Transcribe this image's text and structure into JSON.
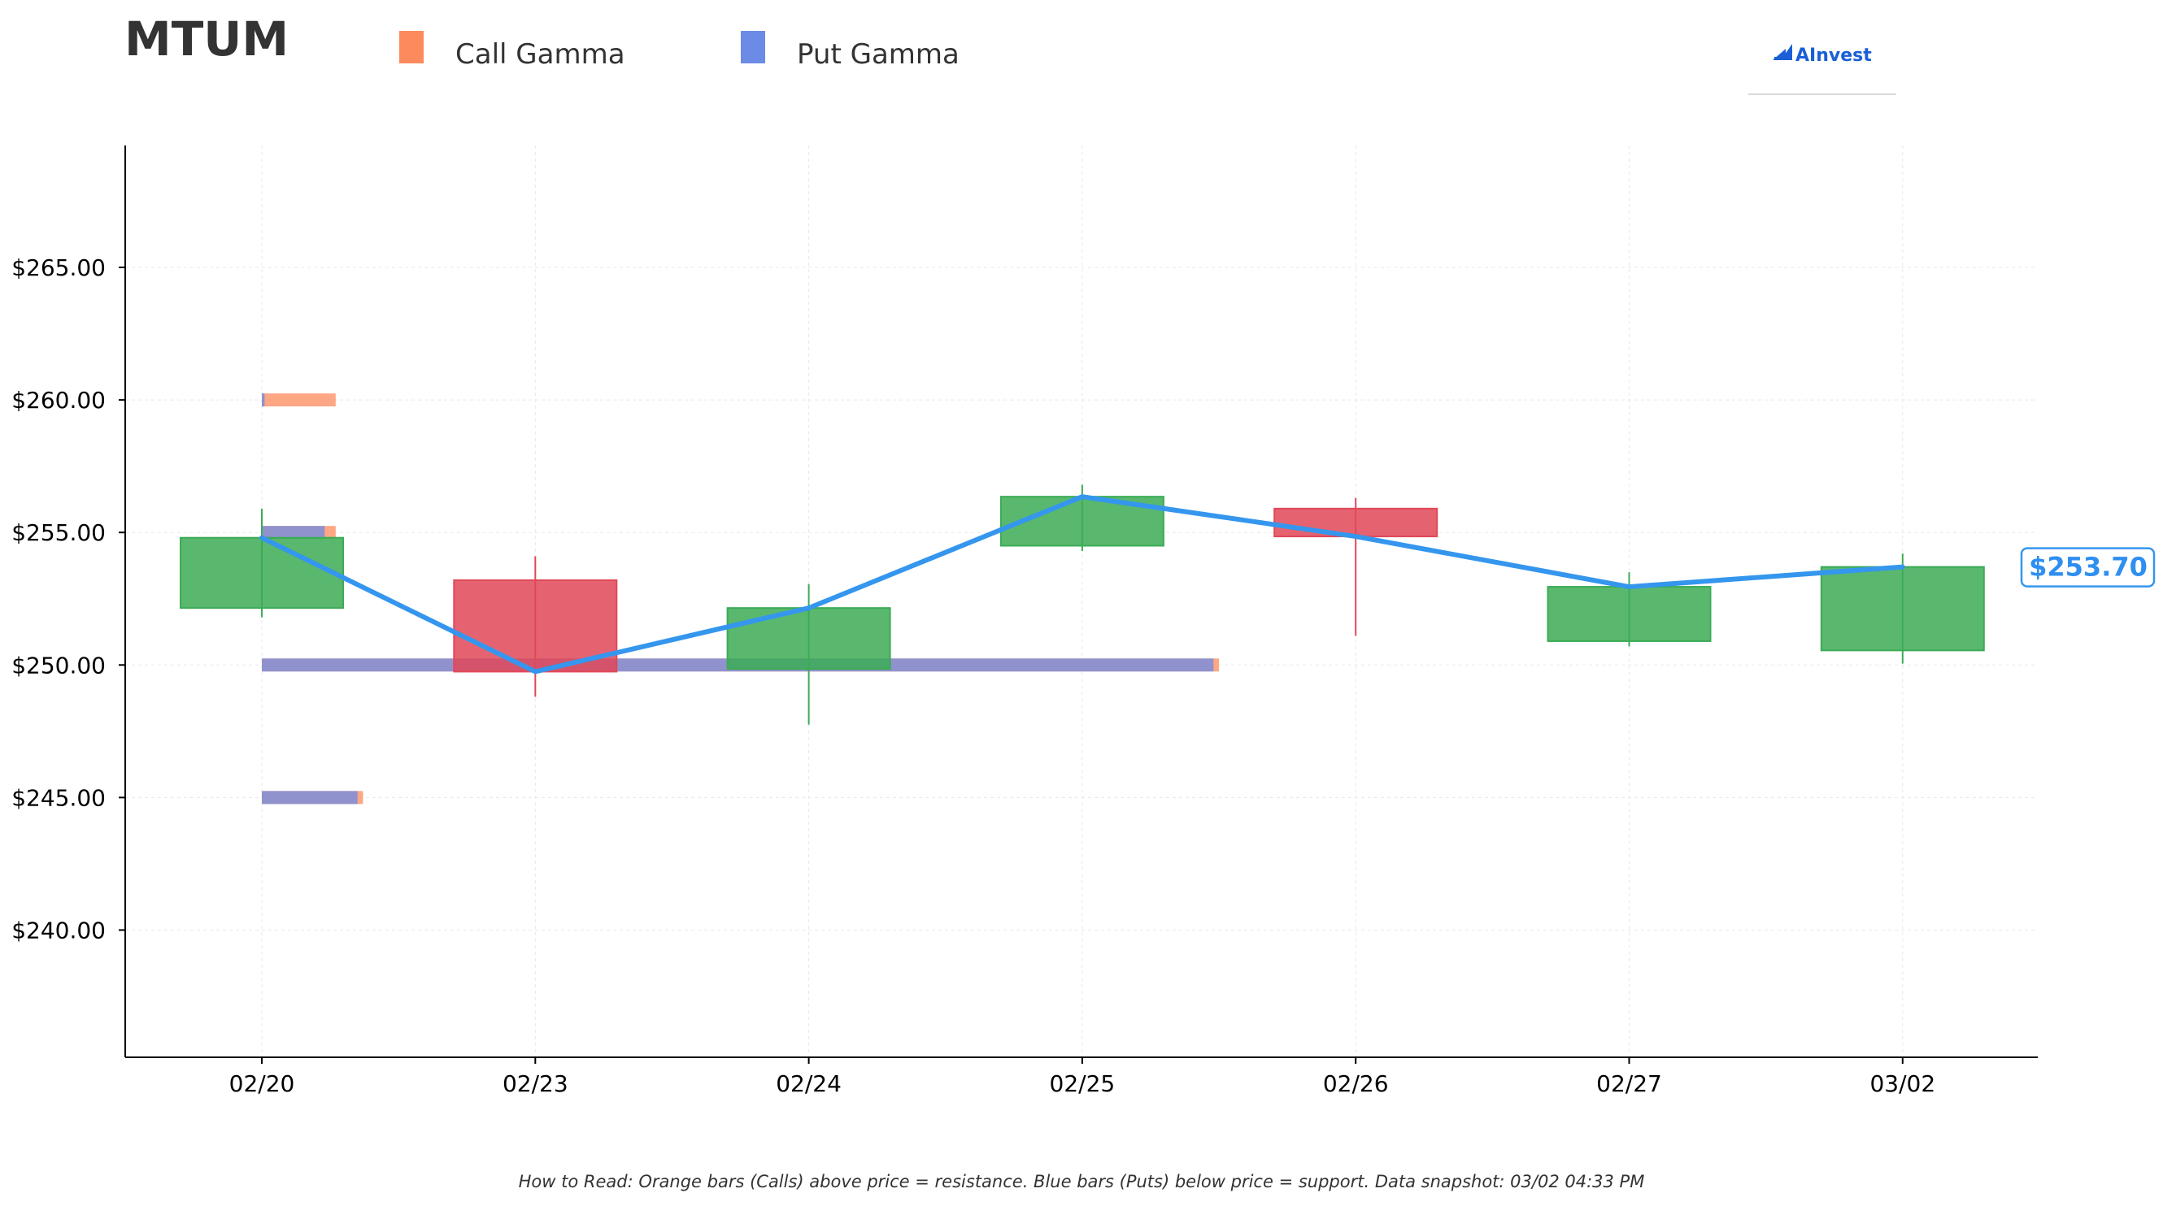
{
  "header": {
    "ticker": "MTUM",
    "legend": [
      {
        "label": "Call Gamma",
        "color": "#fd8a5c"
      },
      {
        "label": "Put Gamma",
        "color": "#6b8be6"
      }
    ],
    "logo_text": "AInvest",
    "logo_icon": "aivest-logo-icon"
  },
  "footnote": "How to Read: Orange bars (Calls) above price = resistance. Blue bars (Puts) below price = support. Data snapshot: 03/02 04:33 PM",
  "price_tag": "$253.70",
  "colors": {
    "up": "#3cab55",
    "down": "#e04858",
    "price_line": "#3596ee",
    "call": "#fd8a5c",
    "put": "#6b8be6",
    "grid": "#e8e8e8"
  },
  "chart_data": {
    "type": "candlestick",
    "title": "MTUM",
    "categories": [
      "02/20",
      "02/23",
      "02/24",
      "02/25",
      "02/26",
      "02/27",
      "03/02"
    ],
    "ohlc": [
      {
        "date": "02/20",
        "open": 252.15,
        "high": 255.9,
        "low": 251.8,
        "close": 254.8
      },
      {
        "date": "02/23",
        "open": 253.2,
        "high": 254.1,
        "low": 248.8,
        "close": 249.75
      },
      {
        "date": "02/24",
        "open": 249.85,
        "high": 253.05,
        "low": 247.75,
        "close": 252.15
      },
      {
        "date": "02/25",
        "open": 254.5,
        "high": 256.8,
        "low": 254.3,
        "close": 256.35
      },
      {
        "date": "02/26",
        "open": 255.9,
        "high": 256.3,
        "low": 251.1,
        "close": 254.85
      },
      {
        "date": "02/27",
        "open": 250.9,
        "high": 253.5,
        "low": 250.7,
        "close": 252.95
      },
      {
        "date": "03/02",
        "open": 250.55,
        "high": 254.2,
        "low": 250.05,
        "close": 253.7
      }
    ],
    "price_line": [
      {
        "date": "02/20",
        "value": 254.8
      },
      {
        "date": "02/23",
        "value": 249.75
      },
      {
        "date": "02/24",
        "value": 252.15
      },
      {
        "date": "02/25",
        "value": 256.35
      },
      {
        "date": "02/26",
        "value": 254.85
      },
      {
        "date": "02/27",
        "value": 252.95
      },
      {
        "date": "03/02",
        "value": 253.7
      }
    ],
    "gamma_bars": [
      {
        "strike": 260,
        "put_extent": 0.01,
        "call_extent": 0.27
      },
      {
        "strike": 255,
        "put_extent": 0.23,
        "call_extent": 0.27
      },
      {
        "strike": 250,
        "put_extent": 3.48,
        "call_extent": 3.5
      },
      {
        "strike": 245,
        "put_extent": 0.35,
        "call_extent": 0.37
      }
    ],
    "gamma_extent_note": "extent measured in category units from the 02/20 column",
    "yticks": [
      240,
      245,
      250,
      255,
      260,
      265
    ],
    "ytick_labels": [
      "$240.00",
      "$245.00",
      "$250.00",
      "$255.00",
      "$260.00",
      "$265.00"
    ],
    "ylim": [
      235.2,
      269.6
    ],
    "xlim": [
      -0.5,
      6.5
    ],
    "grid": true,
    "legend_position": "top",
    "xlabel": "",
    "ylabel": ""
  }
}
